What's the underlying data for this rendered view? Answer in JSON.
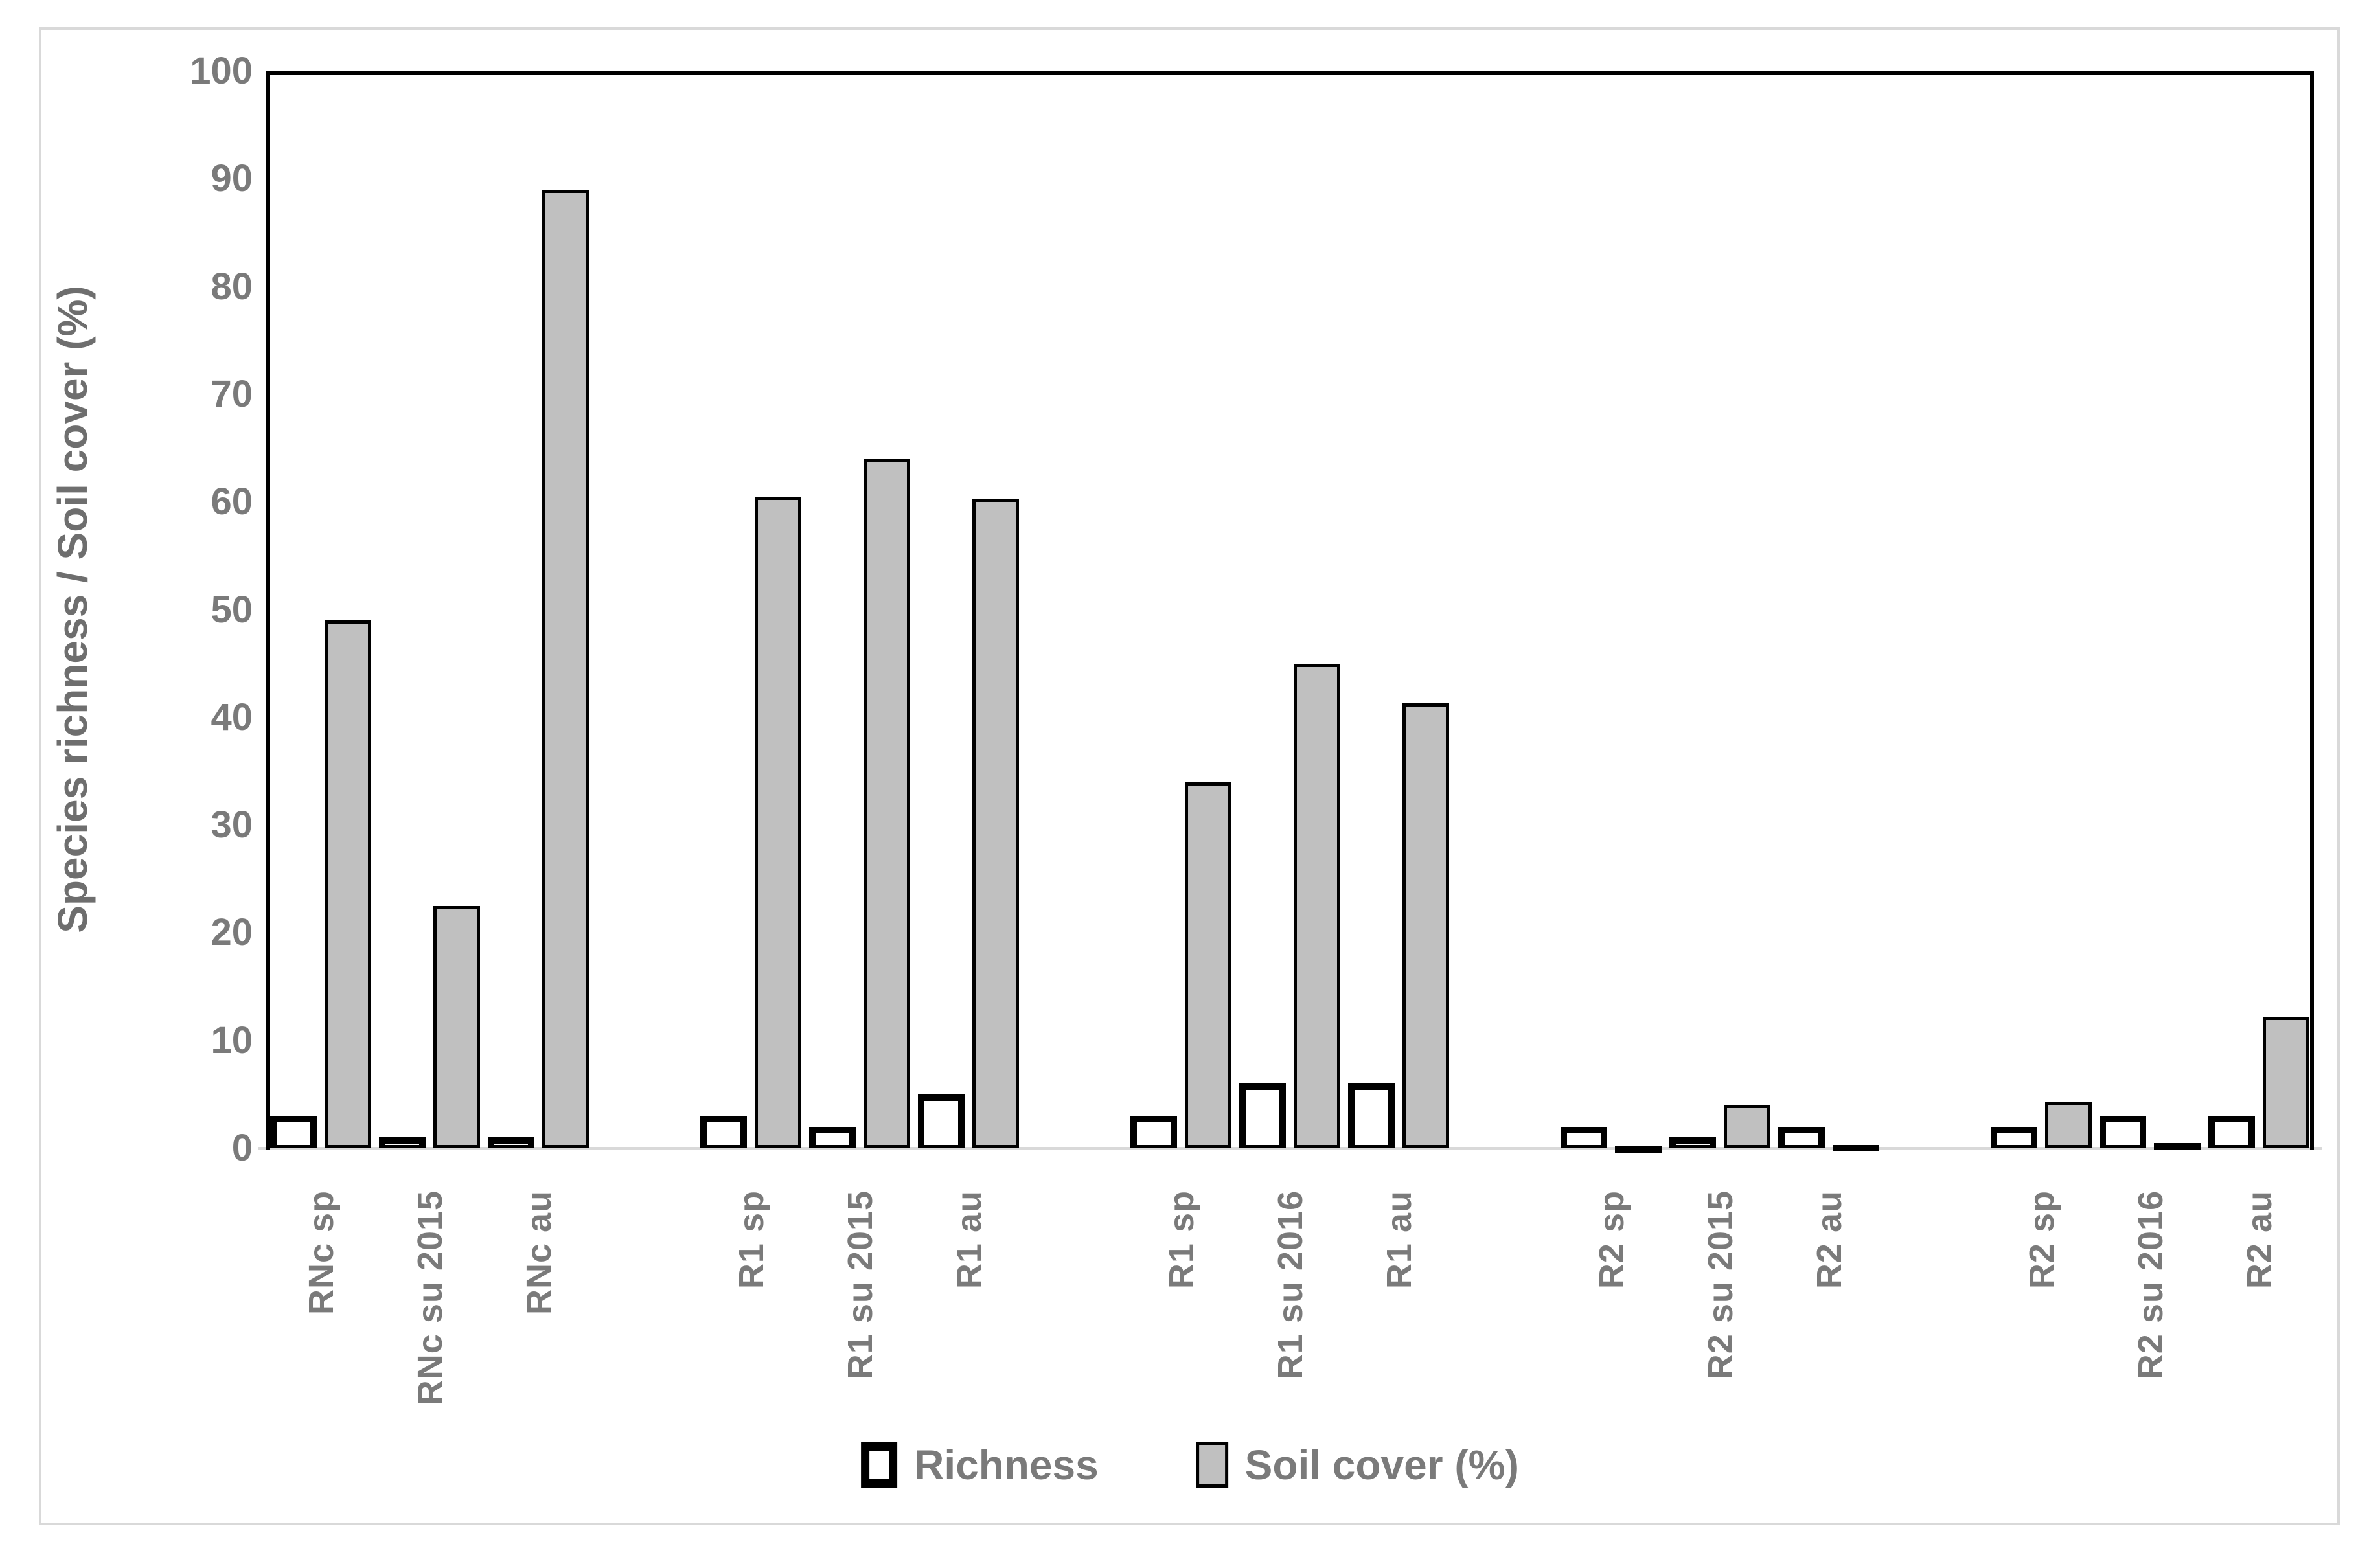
{
  "figure": {
    "background": "#ffffff",
    "frame_border_color": "#d9d9d9",
    "text_color": "#7a7a7a",
    "axis_line_color": "#000000",
    "baseline_color": "#d9d9d9"
  },
  "chart_data": {
    "type": "bar",
    "title": "",
    "xlabel": "",
    "ylabel": "Species richness / Soil cover (%)",
    "ylim": [
      0,
      100
    ],
    "yticks": [
      0,
      10,
      20,
      30,
      40,
      50,
      60,
      70,
      80,
      90,
      100
    ],
    "grid": false,
    "legend_position": "bottom-center",
    "group_size": 3,
    "categories": [
      "RNc sp",
      "RNc su 2015",
      "RNc au",
      "R1 sp",
      "R1 su 2015",
      "R1 au",
      "R1 sp",
      "R1 su 2016",
      "R1 au",
      "R2 sp",
      "R2 su 2015",
      "R2 au",
      "R2 sp",
      "R2 su 2016",
      "R2 au"
    ],
    "series": [
      {
        "name": "Richness",
        "fill": "#ffffff",
        "border": "#000000",
        "values": [
          3,
          1,
          1,
          3,
          2,
          5,
          3,
          6,
          6,
          2,
          1,
          2,
          2,
          3,
          3
        ]
      },
      {
        "name": "Soil cover (%)",
        "fill": "#c0c0c0",
        "border": "#000000",
        "values": [
          49,
          22.5,
          89,
          60.5,
          64,
          60.3,
          34,
          45,
          41.3,
          0.2,
          4,
          0.3,
          4.3,
          0.5,
          12.2
        ]
      }
    ]
  },
  "legend": {
    "items": [
      {
        "label": "Richness",
        "swatch": "white-thick-black-border"
      },
      {
        "label": "Soil cover (%)",
        "swatch": "gray-black-border"
      }
    ]
  }
}
